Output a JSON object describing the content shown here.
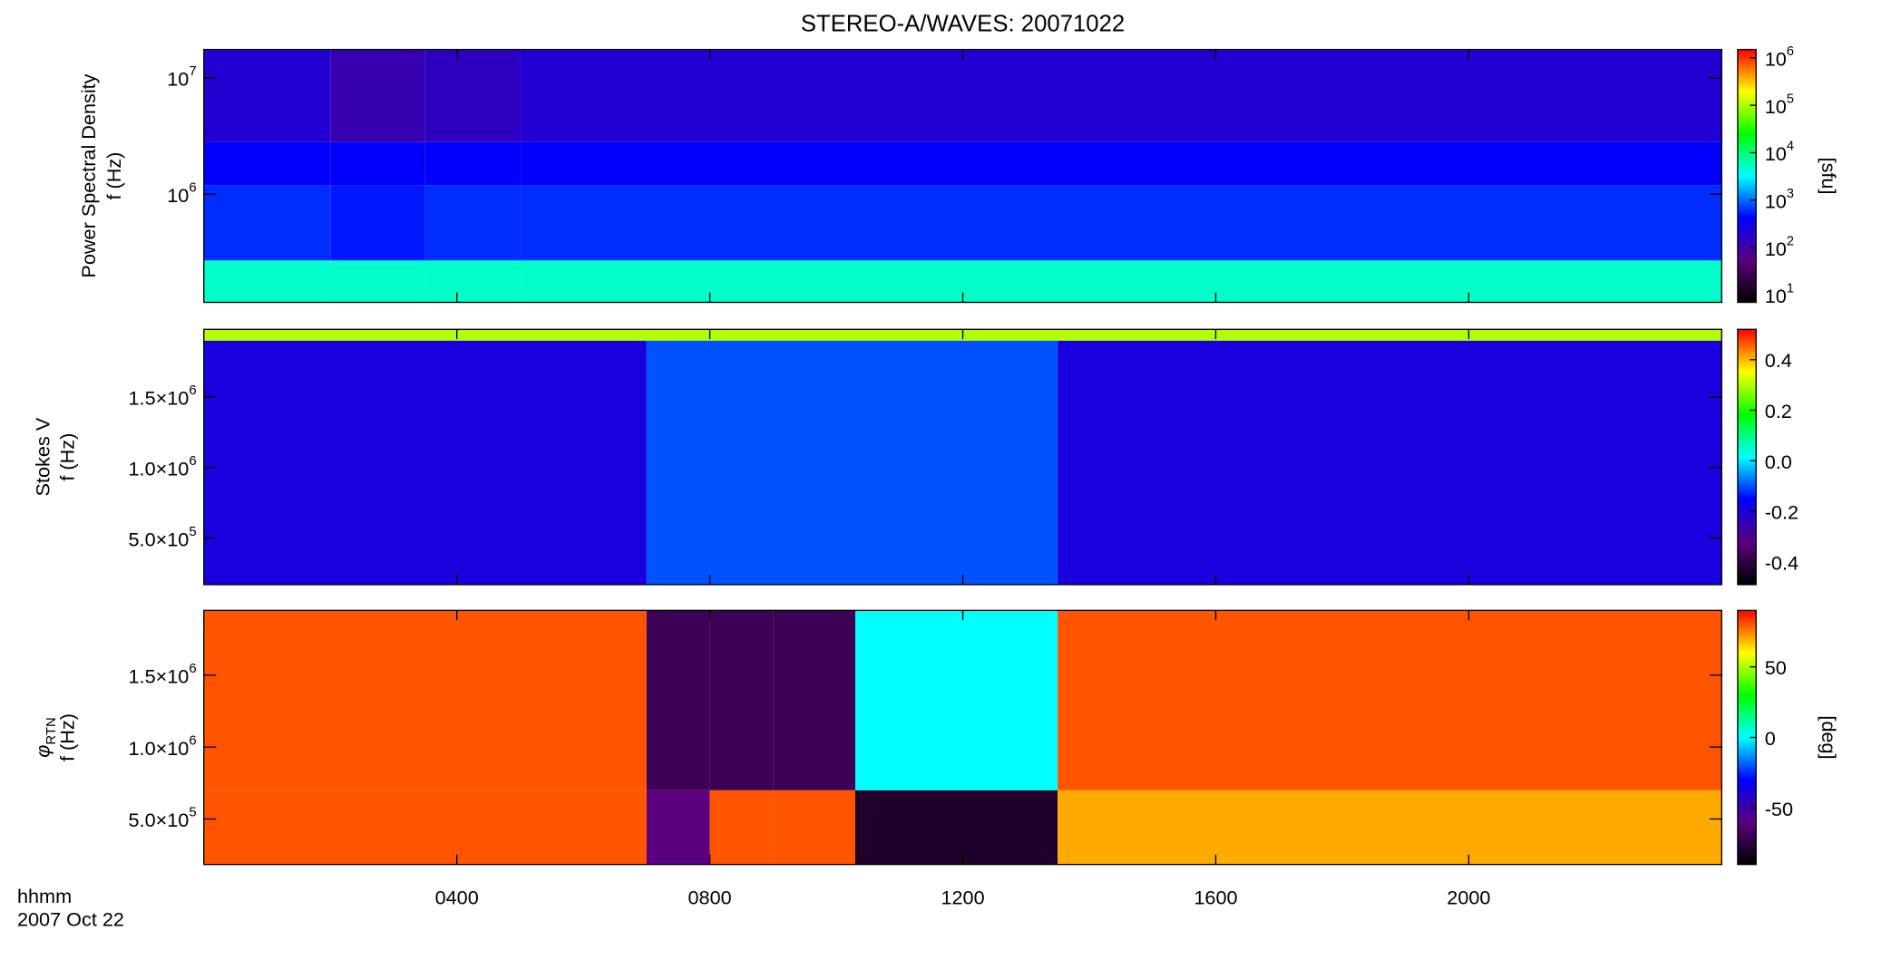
{
  "chart_data": [
    {
      "type": "spectrogram",
      "title": "STEREO-A/WAVES: 20071022",
      "ylabel": "Power Spectral Density",
      "ylabel2": "f (Hz)",
      "yscale": "log",
      "ylim": [
        118000,
        17500000
      ],
      "yticks": [
        {
          "value": 1000000,
          "label": "10",
          "exponent": "6"
        },
        {
          "value": 10000000,
          "label": "10",
          "exponent": "7"
        }
      ],
      "time_edges": [
        0,
        2,
        3.5,
        5,
        24
      ],
      "freq_edges": [
        118000,
        270000,
        1200000,
        2800000,
        17500000
      ],
      "values": [
        [
          5000,
          5000,
          5000,
          5000
        ],
        [
          600,
          500,
          600,
          600
        ],
        [
          400,
          400,
          400,
          400
        ],
        [
          200,
          120,
          150,
          200
        ]
      ],
      "colormap": [
        "#000000",
        "#5a007f",
        "#0000ff",
        "#00ffff",
        "#00ff00",
        "#ffff00",
        "#ff0000"
      ],
      "colorbar": {
        "label": "[sfu]",
        "scale": "log",
        "zlim": [
          7,
          1500000
        ],
        "zticks": [
          {
            "value": 10,
            "label": "10",
            "exponent": "1"
          },
          {
            "value": 100,
            "label": "10",
            "exponent": "2"
          },
          {
            "value": 1000,
            "label": "10",
            "exponent": "3"
          },
          {
            "value": 10000,
            "label": "10",
            "exponent": "4"
          },
          {
            "value": 100000,
            "label": "10",
            "exponent": "5"
          },
          {
            "value": 1000000,
            "label": "10",
            "exponent": "6"
          }
        ]
      }
    },
    {
      "type": "spectrogram",
      "ylabel": "Stokes V",
      "ylabel2": "f (Hz)",
      "yscale": "linear",
      "ylim": [
        170000,
        1980000
      ],
      "yticks": [
        {
          "value": 500000,
          "label": "5.0×10",
          "exponent": "5"
        },
        {
          "value": 1000000,
          "label": "1.0×10",
          "exponent": "6"
        },
        {
          "value": 1500000,
          "label": "1.5×10",
          "exponent": "6"
        }
      ],
      "time_edges": [
        0,
        7,
        13.5,
        24
      ],
      "freq_edges": [
        170000,
        1900000,
        1980000
      ],
      "values": [
        [
          -0.2,
          -0.1,
          -0.2
        ],
        [
          0.3,
          0.3,
          0.3
        ]
      ],
      "colormap": [
        "#000000",
        "#5a007f",
        "#0000ff",
        "#00ffff",
        "#00ff00",
        "#ffff00",
        "#ff0000"
      ],
      "colorbar": {
        "scale": "linear",
        "zlim": [
          -0.49,
          0.52
        ],
        "zticks": [
          -0.4,
          -0.2,
          {
            "value": 0,
            "label": "0.0"
          },
          0.2,
          0.4
        ]
      }
    },
    {
      "type": "spectrogram",
      "ylabel": "φ",
      "ylabel_subscript": "RTN",
      "ylabel2": "f (Hz)",
      "yscale": "linear",
      "ylim": [
        184000,
        1950000
      ],
      "yticks": [
        {
          "value": 500000,
          "label": "5.0×10",
          "exponent": "5"
        },
        {
          "value": 1000000,
          "label": "1.0×10",
          "exponent": "6"
        },
        {
          "value": 1500000,
          "label": "1.5×10",
          "exponent": "6"
        }
      ],
      "time_edges": [
        0,
        7,
        8,
        9,
        10.3,
        13.5,
        24
      ],
      "freq_edges": [
        184000,
        700000,
        1950000
      ],
      "values": [
        [
          80,
          -60,
          80,
          80,
          -80,
          70
        ],
        [
          80,
          -70,
          -70,
          -70,
          0,
          80
        ]
      ],
      "colormap": [
        "#000000",
        "#5a007f",
        "#0000ff",
        "#00ffff",
        "#00ff00",
        "#ffff00",
        "#ff0000"
      ],
      "colorbar": {
        "label": "[deg]",
        "scale": "linear",
        "zlim": [
          -90,
          90
        ],
        "zticks": [
          -50,
          0,
          50
        ]
      },
      "xlim": [
        0,
        24
      ],
      "xticks": [
        {
          "value": 4,
          "label": "0400"
        },
        {
          "value": 8,
          "label": "0800"
        },
        {
          "value": 12,
          "label": "1200"
        },
        {
          "value": 16,
          "label": "1600"
        },
        {
          "value": 20,
          "label": "2000"
        }
      ],
      "xlabel": "hhmm",
      "date": "2007 Oct 22"
    }
  ]
}
